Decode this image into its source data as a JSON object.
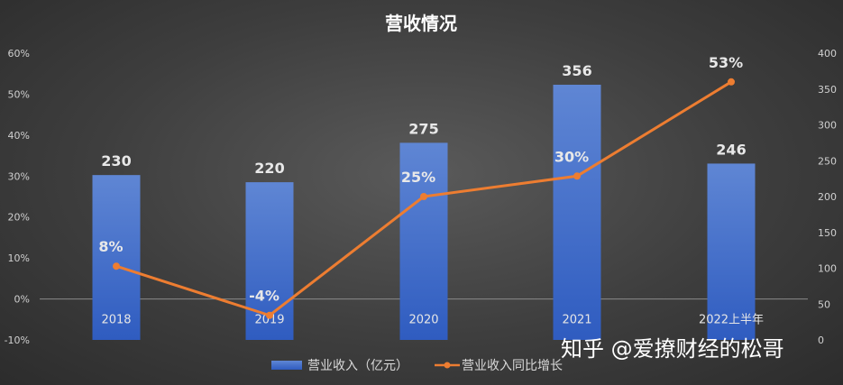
{
  "chart_data": {
    "type": "bar",
    "title": "营收情况",
    "categories": [
      "2018",
      "2019",
      "2020",
      "2021",
      "2022上半年"
    ],
    "series": [
      {
        "name": "营业收入（亿元）",
        "type": "bar",
        "axis": "right",
        "values": [
          230,
          220,
          275,
          356,
          246
        ],
        "labels": [
          "230",
          "220",
          "275",
          "356",
          "246"
        ],
        "color": "#4472c4"
      },
      {
        "name": "营业收入同比增长",
        "type": "line",
        "axis": "left",
        "values": [
          8,
          -4,
          25,
          30,
          53
        ],
        "labels": [
          "8%",
          "-4%",
          "25%",
          "30%",
          "53%"
        ],
        "color": "#ed7d31"
      }
    ],
    "y_left": {
      "range": [
        -10,
        60
      ],
      "ticks": [
        "-10%",
        "0%",
        "10%",
        "20%",
        "30%",
        "40%",
        "50%",
        "60%"
      ]
    },
    "y_right": {
      "range": [
        0,
        400
      ],
      "ticks": [
        "0",
        "50",
        "100",
        "150",
        "200",
        "250",
        "300",
        "350",
        "400"
      ]
    },
    "legend_position": "bottom",
    "grid": false
  },
  "watermark": "知乎 @爱撩财经的松哥"
}
